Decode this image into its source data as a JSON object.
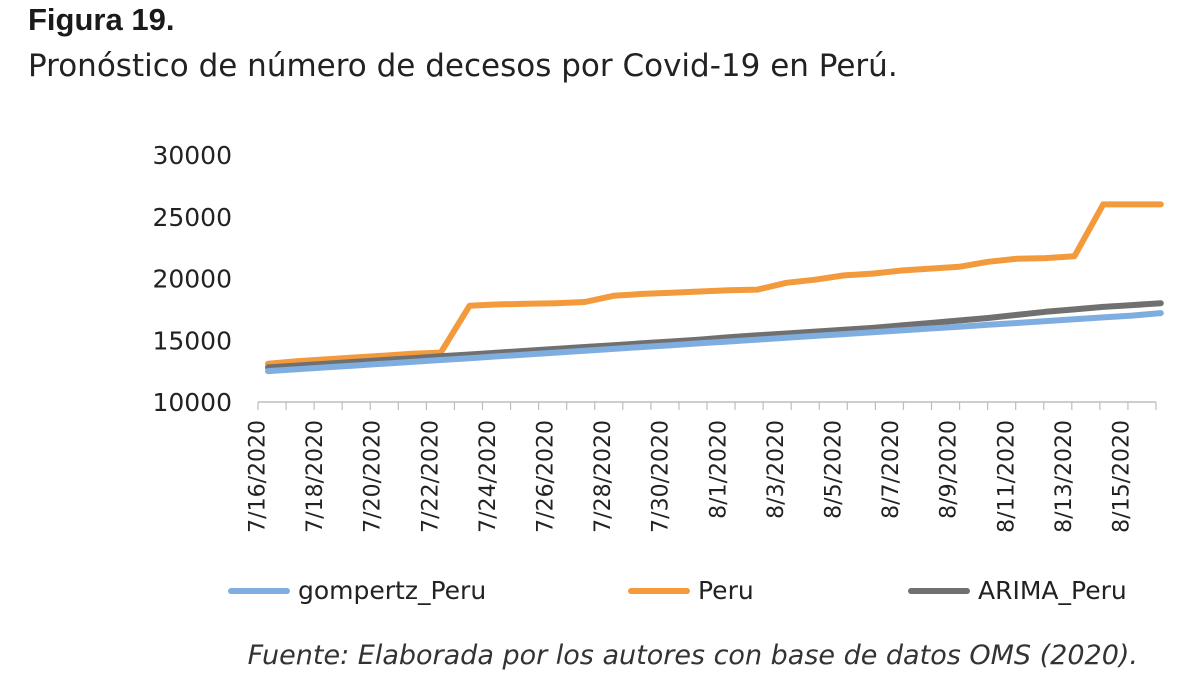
{
  "figure": {
    "label": "Figura 19.",
    "title": "Pronóstico de número de decesos por Covid-19 en Perú.",
    "source": "Fuente: Elaborada por los autores con base de datos OMS (2020)."
  },
  "chart_data": {
    "type": "line",
    "title": "",
    "xlabel": "",
    "ylabel": "",
    "ylim": [
      10000,
      30000
    ],
    "yticks": [
      "10000",
      "15000",
      "20000",
      "25000",
      "30000"
    ],
    "x": [
      "7/16/2020",
      "7/17/2020",
      "7/18/2020",
      "7/19/2020",
      "7/20/2020",
      "7/21/2020",
      "7/22/2020",
      "7/23/2020",
      "7/24/2020",
      "7/25/2020",
      "7/26/2020",
      "7/27/2020",
      "7/28/2020",
      "7/29/2020",
      "7/30/2020",
      "7/31/2020",
      "8/1/2020",
      "8/2/2020",
      "8/3/2020",
      "8/4/2020",
      "8/5/2020",
      "8/6/2020",
      "8/7/2020",
      "8/8/2020",
      "8/9/2020",
      "8/10/2020",
      "8/11/2020",
      "8/12/2020",
      "8/13/2020",
      "8/14/2020",
      "8/15/2020",
      "8/16/2020"
    ],
    "xtick_labels": [
      "7/16/2020",
      "7/18/2020",
      "7/20/2020",
      "7/22/2020",
      "7/24/2020",
      "7/26/2020",
      "7/28/2020",
      "7/30/2020",
      "8/1/2020",
      "8/3/2020",
      "8/5/2020",
      "8/7/2020",
      "8/9/2020",
      "8/11/2020",
      "8/13/2020",
      "8/15/2020"
    ],
    "grid": false,
    "legend_position": "bottom",
    "series": [
      {
        "name": "gompertz_Peru",
        "color": "#7eaee0",
        "values": [
          12500,
          12650,
          12800,
          12950,
          13100,
          13250,
          13400,
          13550,
          13700,
          13850,
          14000,
          14150,
          14300,
          14450,
          14600,
          14750,
          14900,
          15050,
          15200,
          15350,
          15500,
          15650,
          15800,
          15950,
          16100,
          16250,
          16400,
          16550,
          16700,
          16850,
          17000,
          17200
        ]
      },
      {
        "name": "Peru",
        "color": "#f39a3d",
        "values": [
          13100,
          13300,
          13450,
          13600,
          13750,
          13900,
          14000,
          17800,
          17900,
          17950,
          18000,
          18100,
          18600,
          18750,
          18850,
          18950,
          19050,
          19100,
          19650,
          19900,
          20250,
          20400,
          20650,
          20800,
          20950,
          21350,
          21600,
          21650,
          21800,
          26000,
          26000,
          26000
        ]
      },
      {
        "name": "ARIMA_Peru",
        "color": "#707070",
        "values": [
          12800,
          12950,
          13100,
          13250,
          13400,
          13550,
          13700,
          13850,
          14000,
          14150,
          14300,
          14450,
          14600,
          14750,
          14900,
          15050,
          15250,
          15400,
          15550,
          15700,
          15850,
          16000,
          16200,
          16400,
          16600,
          16800,
          17050,
          17300,
          17500,
          17700,
          17850,
          18000
        ]
      }
    ]
  }
}
